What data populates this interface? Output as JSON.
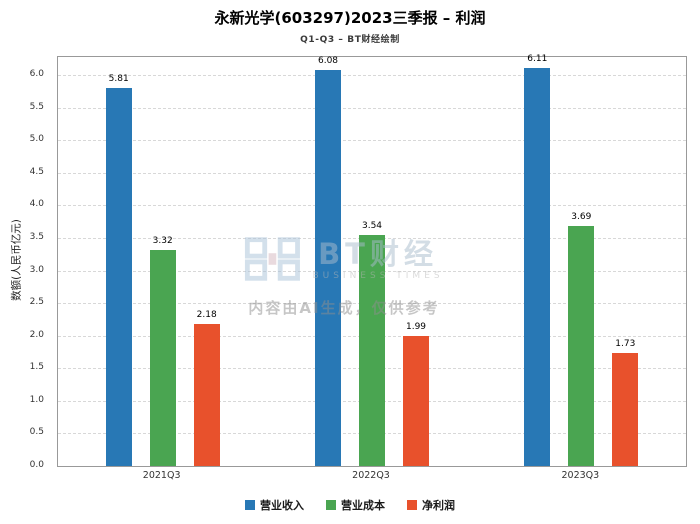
{
  "watermark": {
    "brand": "BT财经",
    "brand_sub": "BUSINESS TIMES",
    "disclaimer": "内容由AI生成，仅供参考"
  },
  "chart_data": {
    "type": "bar",
    "title": "永新光学(603297)2023三季报 – 利润",
    "subtitle": "Q1-Q3 – BT财经绘制",
    "categories": [
      "2021Q3",
      "2022Q3",
      "2023Q3"
    ],
    "series": [
      {
        "name": "营业收入",
        "color": "#2878b5",
        "values": [
          5.81,
          6.08,
          6.11
        ]
      },
      {
        "name": "营业成本",
        "color": "#4aa551",
        "values": [
          3.32,
          3.54,
          3.69
        ]
      },
      {
        "name": "净利润",
        "color": "#e8512c",
        "values": [
          2.18,
          1.99,
          1.73
        ]
      }
    ],
    "xlabel": "",
    "ylabel": "数额(人民币亿元)",
    "ylim": [
      0,
      6.28
    ],
    "yticks": [
      0,
      0.5,
      1,
      1.5,
      2,
      2.5,
      3,
      3.5,
      4,
      4.5,
      5,
      5.5,
      6
    ],
    "ytick_decimals": 1,
    "value_label_decimals": 2,
    "grid": true,
    "grid_style": "dashed",
    "legend_position": "bottom"
  }
}
